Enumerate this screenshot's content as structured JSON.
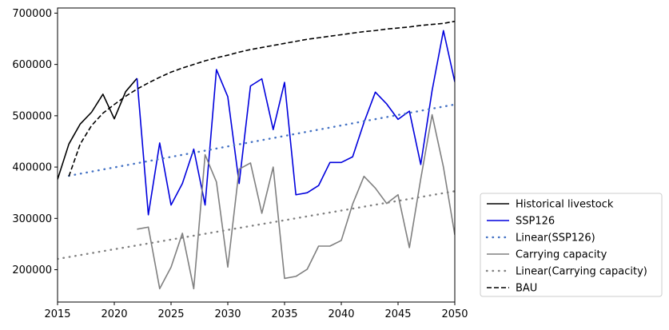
{
  "chart_data": {
    "type": "line",
    "title": "",
    "xlabel": "",
    "ylabel": "",
    "xlim": [
      2015,
      2050
    ],
    "ylim": [
      137000,
      710000
    ],
    "x_ticks": [
      2015,
      2020,
      2025,
      2030,
      2035,
      2040,
      2045,
      2050
    ],
    "x_tick_labels": [
      "2015",
      "2020",
      "2025",
      "2030",
      "2035",
      "2040",
      "2045",
      "2050"
    ],
    "y_ticks": [
      200000,
      300000,
      400000,
      500000,
      600000,
      700000
    ],
    "y_tick_labels": [
      "200000",
      "300000",
      "400000",
      "500000",
      "600000",
      "700000"
    ],
    "grid": false,
    "legend_position": "outside-right-bottom",
    "series": [
      {
        "name": "Historical livestock",
        "style": "solid",
        "color": "#000000",
        "x": [
          2015,
          2016,
          2017,
          2018,
          2019,
          2020,
          2021,
          2022
        ],
        "y": [
          376000,
          445000,
          484000,
          507000,
          542000,
          494000,
          547000,
          573000
        ]
      },
      {
        "name": "SSP126",
        "style": "solid",
        "color": "#0000dd",
        "x": [
          2022,
          2023,
          2024,
          2025,
          2026,
          2027,
          2028,
          2029,
          2030,
          2031,
          2032,
          2033,
          2034,
          2035,
          2036,
          2037,
          2038,
          2039,
          2040,
          2041,
          2042,
          2043,
          2044,
          2045,
          2046,
          2047,
          2048,
          2049,
          2050
        ],
        "y": [
          573000,
          307000,
          447000,
          326000,
          368000,
          435000,
          326000,
          590000,
          537000,
          368000,
          558000,
          572000,
          473000,
          565000,
          346000,
          350000,
          364000,
          409000,
          409000,
          420000,
          487000,
          546000,
          523000,
          493000,
          509000,
          405000,
          549000,
          666000,
          566000
        ]
      },
      {
        "name": "Linear(SSP126)",
        "style": "dotted",
        "color": "#4472c4",
        "x": [
          2016,
          2050
        ],
        "y": [
          383000,
          522000
        ]
      },
      {
        "name": "Carrying capacity",
        "style": "solid",
        "color": "#808080",
        "x": [
          2022,
          2023,
          2024,
          2025,
          2026,
          2027,
          2028,
          2029,
          2030,
          2031,
          2032,
          2033,
          2034,
          2035,
          2036,
          2037,
          2038,
          2039,
          2040,
          2041,
          2042,
          2043,
          2044,
          2045,
          2046,
          2047,
          2048,
          2049,
          2050
        ],
        "y": [
          279000,
          283000,
          163000,
          205000,
          271000,
          163000,
          424000,
          371000,
          205000,
          396000,
          408000,
          310000,
          400000,
          183000,
          187000,
          201000,
          246000,
          246000,
          257000,
          328000,
          382000,
          359000,
          329000,
          346000,
          243000,
          377000,
          502000,
          400000,
          268000
        ]
      },
      {
        "name": "Linear(Carrying capacity)",
        "style": "dotted",
        "color": "#808080",
        "x": [
          2015,
          2050
        ],
        "y": [
          221000,
          353000
        ]
      },
      {
        "name": "BAU",
        "style": "dashed",
        "color": "#000000",
        "x": [
          2016,
          2017,
          2018,
          2019,
          2020,
          2021,
          2022,
          2023,
          2024,
          2025,
          2026,
          2027,
          2028,
          2029,
          2030,
          2031,
          2032,
          2033,
          2034,
          2035,
          2036,
          2037,
          2038,
          2039,
          2040,
          2041,
          2042,
          2043,
          2044,
          2045,
          2046,
          2047,
          2048,
          2049,
          2050
        ],
        "y": [
          382000,
          445000,
          481000,
          505000,
          522000,
          538000,
          552000,
          564000,
          575000,
          585000,
          593000,
          600000,
          607000,
          613000,
          618000,
          624000,
          629000,
          633000,
          637000,
          641000,
          645000,
          649000,
          652000,
          655000,
          658000,
          661000,
          664000,
          666000,
          669000,
          671000,
          673000,
          676000,
          678000,
          680000,
          684000
        ]
      }
    ]
  }
}
